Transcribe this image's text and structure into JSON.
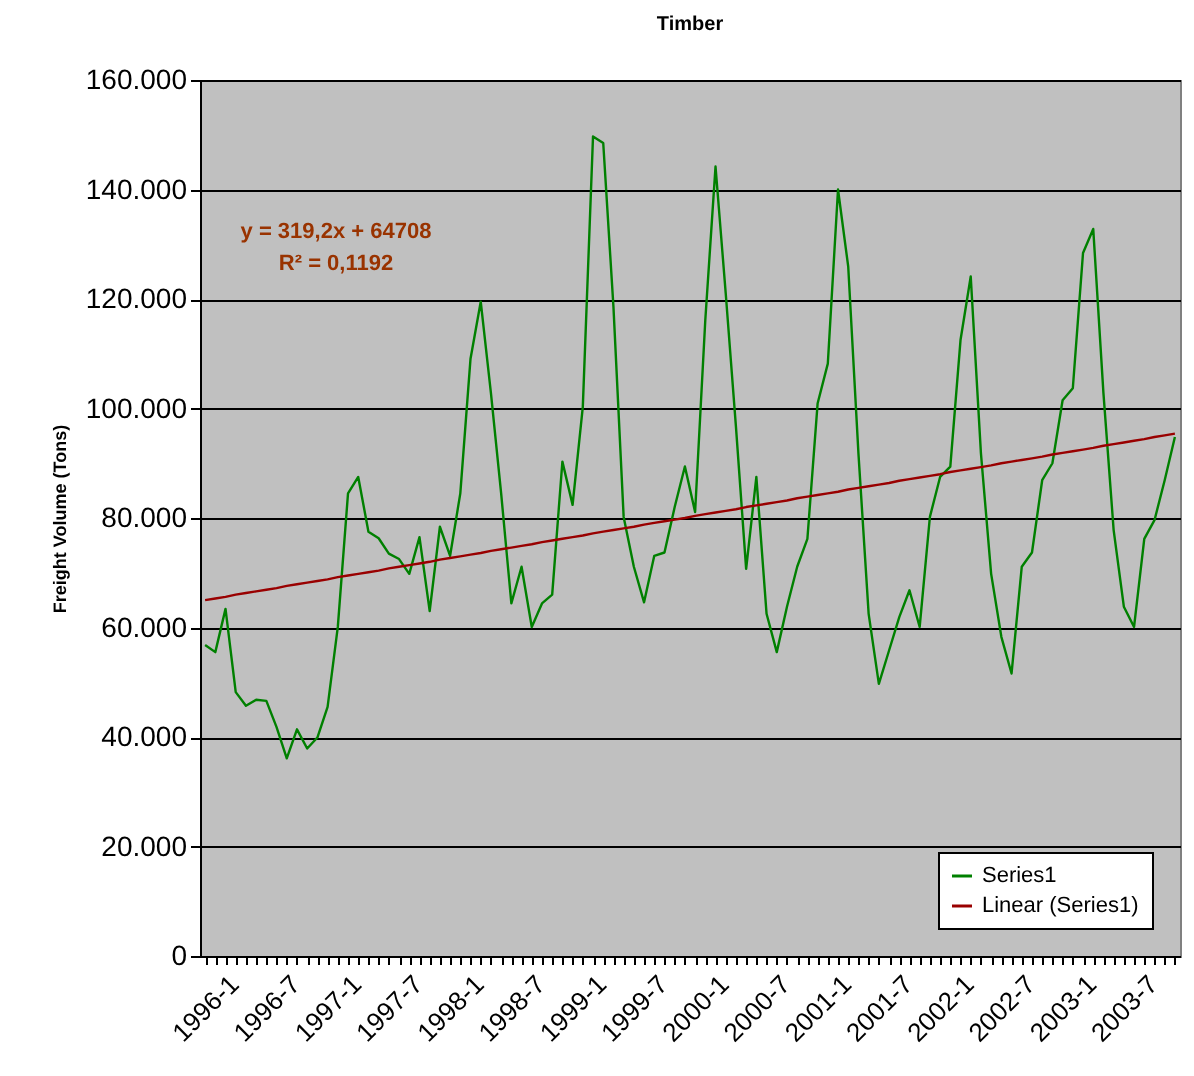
{
  "chart_data": {
    "type": "line",
    "title": "Timber",
    "ylabel": "Freight Volume (Tons)",
    "categories": [
      "1996-1",
      null,
      null,
      null,
      null,
      null,
      "1996-7",
      null,
      null,
      null,
      null,
      null,
      "1997-1",
      null,
      null,
      null,
      null,
      null,
      "1997-7",
      null,
      null,
      null,
      null,
      null,
      "1998-1",
      null,
      null,
      null,
      null,
      null,
      "1998-7",
      null,
      null,
      null,
      null,
      null,
      "1999-1",
      null,
      null,
      null,
      null,
      null,
      "1999-7",
      null,
      null,
      null,
      null,
      null,
      "2000-1",
      null,
      null,
      null,
      null,
      null,
      "2000-7",
      null,
      null,
      null,
      null,
      null,
      "2001-1",
      null,
      null,
      null,
      null,
      null,
      "2001-7",
      null,
      null,
      null,
      null,
      null,
      "2002-1",
      null,
      null,
      null,
      null,
      null,
      "2002-7",
      null,
      null,
      null,
      null,
      null,
      "2003-1",
      null,
      null,
      null,
      null,
      null,
      "2003-7",
      null,
      null,
      null,
      null,
      null
    ],
    "series": [
      {
        "name": "Series1",
        "color": "#008000",
        "values": [
          56800,
          55500,
          63400,
          48200,
          45700,
          46800,
          46600,
          41800,
          36100,
          41400,
          37900,
          39900,
          45500,
          60100,
          84500,
          87500,
          77500,
          76300,
          73500,
          72500,
          69800,
          76500,
          63000,
          78400,
          73100,
          84500,
          109100,
          119500,
          102800,
          84500,
          64400,
          71100,
          60100,
          64400,
          66000,
          90300,
          82400,
          100300,
          149700,
          148500,
          118600,
          80200,
          71100,
          64600,
          73100,
          73700,
          82000,
          89400,
          81100,
          116200,
          144200,
          121000,
          96700,
          70700,
          87500,
          62500,
          55500,
          63800,
          71100,
          76200,
          100900,
          108200,
          140000,
          125900,
          91800,
          62500,
          49700,
          55800,
          61900,
          66800,
          60100,
          80200,
          87500,
          89400,
          112500,
          124100,
          91800,
          69800,
          58300,
          51600,
          71100,
          73700,
          86900,
          90000,
          101500,
          103700,
          128400,
          132800,
          102800,
          77800,
          63800,
          60100,
          76200,
          79600,
          86900,
          94800
        ]
      },
      {
        "name": "Linear (Series1)",
        "color": "#990000",
        "values": [
          65000,
          65300,
          65600,
          66000,
          66300,
          66600,
          66900,
          67200,
          67600,
          67900,
          68200,
          68500,
          68800,
          69200,
          69500,
          69800,
          70100,
          70400,
          70800,
          71100,
          71400,
          71700,
          72000,
          72400,
          72700,
          73000,
          73300,
          73600,
          74000,
          74300,
          74600,
          74900,
          75200,
          75600,
          75900,
          76200,
          76500,
          76800,
          77200,
          77500,
          77800,
          78100,
          78400,
          78800,
          79100,
          79400,
          79700,
          80000,
          80400,
          80700,
          81000,
          81300,
          81600,
          82000,
          82300,
          82600,
          82900,
          83200,
          83600,
          83900,
          84200,
          84500,
          84800,
          85200,
          85500,
          85800,
          86100,
          86400,
          86800,
          87100,
          87400,
          87700,
          88000,
          88400,
          88700,
          89000,
          89300,
          89600,
          90000,
          90300,
          90600,
          90900,
          91200,
          91600,
          91900,
          92200,
          92500,
          92800,
          93200,
          93500,
          93800,
          94100,
          94400,
          94800,
          95100,
          95400
        ]
      }
    ],
    "ylim": [
      0,
      160000
    ],
    "yticks": [
      {
        "value": 0,
        "label": "0"
      },
      {
        "value": 20000,
        "label": "20.000"
      },
      {
        "value": 40000,
        "label": "40.000"
      },
      {
        "value": 60000,
        "label": "60.000"
      },
      {
        "value": 80000,
        "label": "80.000"
      },
      {
        "value": 100000,
        "label": "100.000"
      },
      {
        "value": 120000,
        "label": "120.000"
      },
      {
        "value": 140000,
        "label": "140.000"
      },
      {
        "value": 160000,
        "label": "160.000"
      }
    ],
    "grid": "y",
    "legend": "bottom right",
    "marker": "none",
    "line_style": "solid",
    "annotations": [
      "y = 319,2x + 64708",
      "R² = 0,1192"
    ]
  }
}
